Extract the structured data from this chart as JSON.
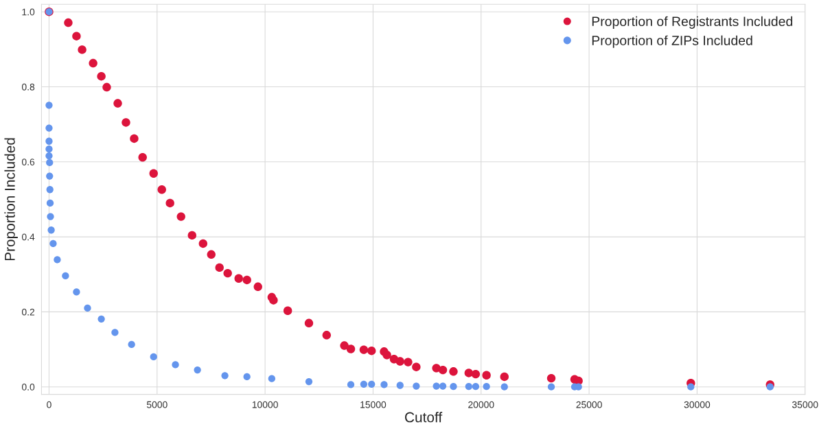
{
  "chart_data": {
    "type": "scatter",
    "xlabel": "Cutoff",
    "ylabel": "Proportion Included",
    "xlim": [
      -350,
      35000
    ],
    "ylim": [
      -0.02,
      1.02
    ],
    "xticks": [
      0,
      5000,
      10000,
      15000,
      20000,
      25000,
      30000,
      35000
    ],
    "yticks": [
      {
        "value": 0,
        "label": "0.0"
      },
      0.2,
      0.4,
      0.6,
      0.8,
      {
        "value": 1,
        "label": "1.0"
      }
    ],
    "grid": true,
    "legend": "top right",
    "marker": "circle",
    "series": [
      {
        "name": "Proportion of Registrants Included",
        "color": "#dc143c",
        "x": [
          0,
          890,
          1270,
          1530,
          2040,
          2420,
          2670,
          3180,
          3560,
          3940,
          4330,
          4840,
          5220,
          5600,
          6110,
          6620,
          7130,
          7510,
          7890,
          8270,
          8780,
          9160,
          9670,
          10310,
          10390,
          11050,
          12030,
          12850,
          13670,
          13970,
          14570,
          14930,
          15510,
          15640,
          15970,
          16250,
          16620,
          17000,
          17930,
          18230,
          18720,
          19430,
          19750,
          20250,
          21080,
          23250,
          24330,
          24510,
          29710,
          33380
        ],
        "values": [
          1.0,
          0.971,
          0.935,
          0.899,
          0.863,
          0.828,
          0.799,
          0.756,
          0.705,
          0.662,
          0.612,
          0.569,
          0.526,
          0.49,
          0.454,
          0.404,
          0.382,
          0.353,
          0.318,
          0.303,
          0.289,
          0.285,
          0.267,
          0.239,
          0.231,
          0.203,
          0.17,
          0.138,
          0.11,
          0.101,
          0.099,
          0.096,
          0.094,
          0.085,
          0.074,
          0.068,
          0.066,
          0.053,
          0.05,
          0.045,
          0.041,
          0.037,
          0.034,
          0.031,
          0.027,
          0.023,
          0.02,
          0.016,
          0.01,
          0.006
        ]
      },
      {
        "name": "Proportion of ZIPs Included",
        "color": "#6495ed",
        "x": [
          0,
          0,
          0,
          0,
          0,
          0,
          25,
          25,
          40,
          50,
          65,
          100,
          190,
          380,
          760,
          1270,
          1780,
          2420,
          3050,
          3820,
          4840,
          5850,
          6870,
          8140,
          9160,
          10310,
          12030,
          13970,
          14570,
          14930,
          15510,
          16250,
          17000,
          17930,
          18230,
          18720,
          19430,
          19750,
          20250,
          21080,
          23250,
          24330,
          24510,
          29710,
          33380
        ],
        "values": [
          1.0,
          0.751,
          0.69,
          0.655,
          0.634,
          0.616,
          0.598,
          0.562,
          0.526,
          0.49,
          0.454,
          0.418,
          0.382,
          0.339,
          0.296,
          0.253,
          0.21,
          0.181,
          0.145,
          0.113,
          0.08,
          0.059,
          0.045,
          0.03,
          0.027,
          0.022,
          0.014,
          0.006,
          0.007,
          0.007,
          0.006,
          0.004,
          0.002,
          0.002,
          0.002,
          0.001,
          0.001,
          0.001,
          0.001,
          0,
          0,
          0,
          0,
          0,
          0
        ]
      }
    ]
  }
}
